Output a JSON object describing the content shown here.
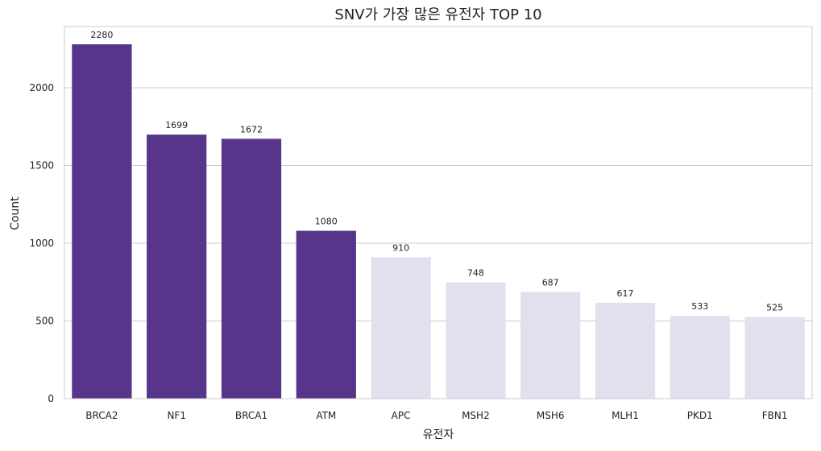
{
  "chart_data": {
    "type": "bar",
    "title": "SNV가 가장 많은 유전자 TOP 10",
    "xlabel": "유전자",
    "ylabel": "Count",
    "categories": [
      "BRCA2",
      "NF1",
      "BRCA1",
      "ATM",
      "APC",
      "MSH2",
      "MSH6",
      "MLH1",
      "PKD1",
      "FBN1"
    ],
    "values": [
      2280,
      1699,
      1672,
      1080,
      910,
      748,
      687,
      617,
      533,
      525
    ],
    "ylim": [
      0,
      2394
    ],
    "yticks": [
      0,
      500,
      1000,
      1500,
      2000
    ],
    "grid": "y",
    "colors": {
      "highlight": "#56358a",
      "other": "#e1e0ee"
    },
    "highlight_count": 4
  }
}
